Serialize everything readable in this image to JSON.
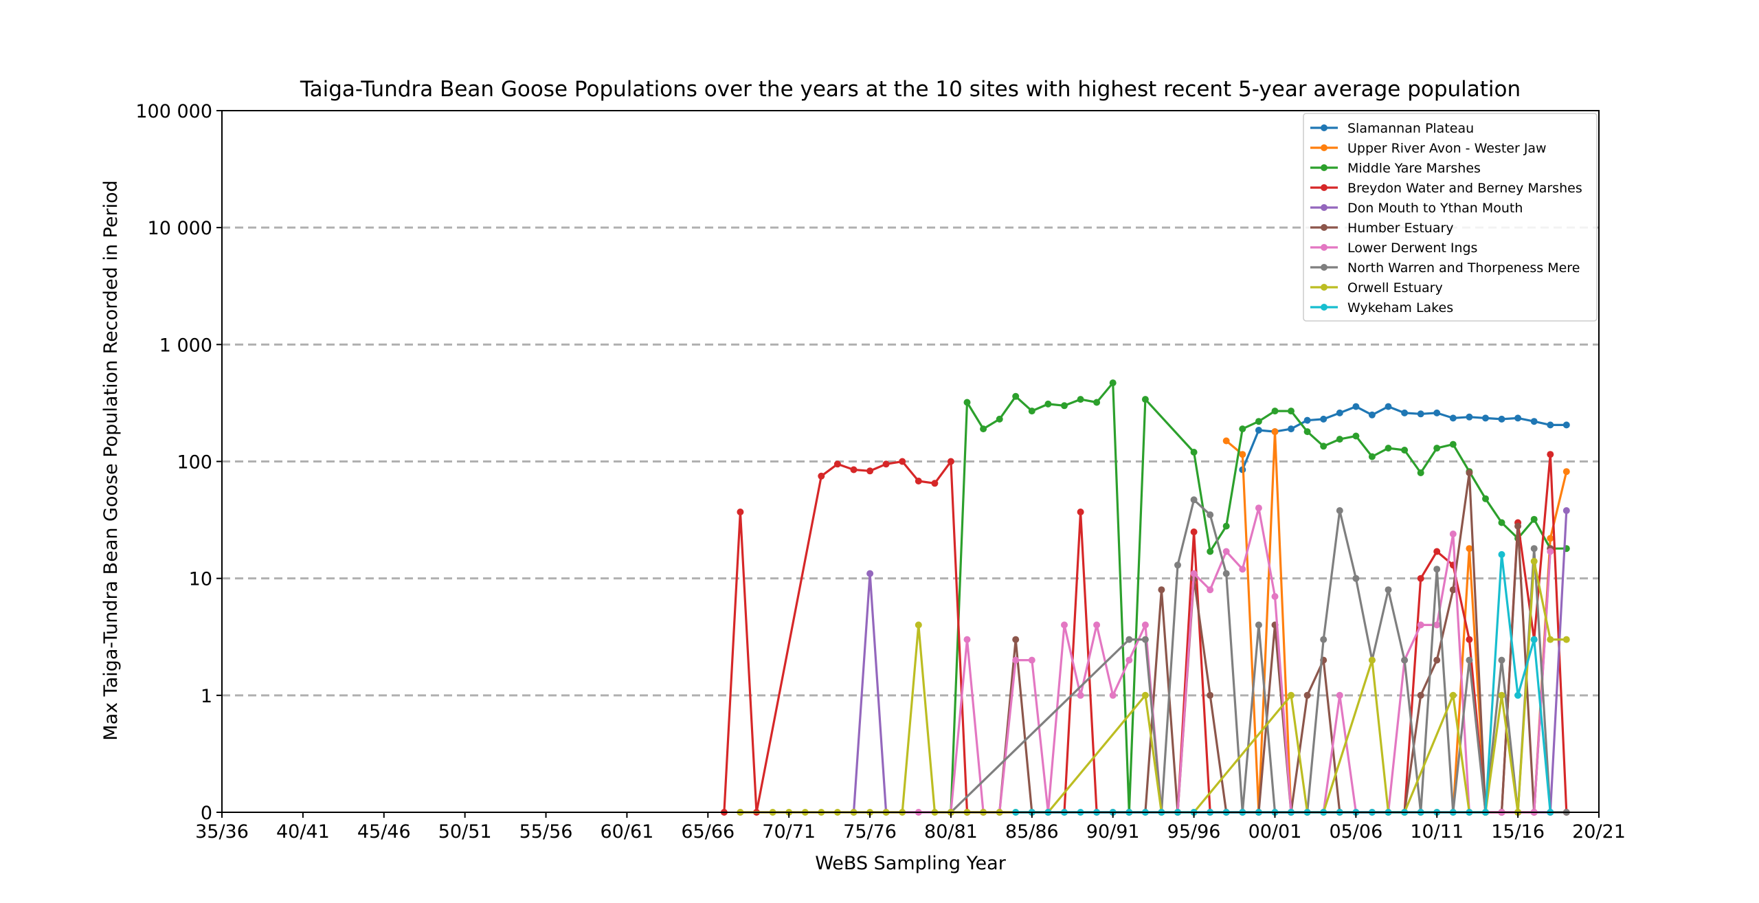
{
  "chart_data": {
    "type": "line",
    "title": "Taiga-Tundra Bean Goose Populations over the years at the 10 sites with highest recent 5-year average population",
    "xlabel": "WeBS Sampling Year",
    "ylabel": "Max Taiga-Tundra Bean Goose Population Recorded in Period",
    "x_axis": {
      "first_year": 1935,
      "last_year": 2020,
      "tick_labels": [
        "35/36",
        "40/41",
        "45/46",
        "50/51",
        "55/56",
        "60/61",
        "65/66",
        "70/71",
        "75/76",
        "80/81",
        "85/86",
        "90/91",
        "95/96",
        "00/01",
        "05/06",
        "10/11",
        "15/16",
        "20/21"
      ]
    },
    "y_axis": {
      "scale": "symlog",
      "linthresh": 1,
      "ylim": [
        0,
        100000
      ],
      "tick_values": [
        0,
        1,
        10,
        100,
        1000,
        10000,
        100000
      ],
      "tick_labels": [
        "0",
        "1",
        "10",
        "100",
        "1 000",
        "10 000",
        "100 000"
      ]
    },
    "grid": "horizontal dashed",
    "legend_position": "top-right",
    "series": [
      {
        "name": "Slamannan Plateau",
        "color": "#1f77b4",
        "x": [
          1998,
          1999,
          2000,
          2001,
          2002,
          2003,
          2004,
          2005,
          2006,
          2007,
          2008,
          2009,
          2010,
          2011,
          2012,
          2013,
          2014,
          2015,
          2016,
          2017,
          2018
        ],
        "y": [
          85,
          185,
          180,
          190,
          225,
          230,
          260,
          295,
          250,
          295,
          260,
          255,
          260,
          235,
          240,
          235,
          230,
          235,
          220,
          205,
          205
        ]
      },
      {
        "name": "Upper River Avon - Wester Jaw",
        "color": "#ff7f0e",
        "x": [
          1997,
          1998,
          1999,
          2000,
          2001,
          2002,
          2003,
          2004,
          2005,
          2006,
          2007,
          2008,
          2009,
          2010,
          2011,
          2012,
          2013,
          2014,
          2015,
          2016,
          2017,
          2018
        ],
        "y": [
          150,
          115,
          0,
          180,
          0,
          0,
          0,
          0,
          0,
          0,
          0,
          0,
          0,
          0,
          0,
          18,
          0,
          0,
          0,
          0,
          22,
          82
        ]
      },
      {
        "name": "Middle Yare Marshes",
        "color": "#2ca02c",
        "x": [
          1980,
          1981,
          1982,
          1983,
          1984,
          1985,
          1986,
          1987,
          1988,
          1989,
          1990,
          1991,
          1992,
          1995,
          1996,
          1997,
          1998,
          1999,
          2000,
          2001,
          2002,
          2003,
          2004,
          2005,
          2006,
          2007,
          2008,
          2009,
          2010,
          2011,
          2012,
          2013,
          2014,
          2015,
          2016,
          2017,
          2018
        ],
        "y": [
          0,
          320,
          190,
          230,
          360,
          270,
          310,
          300,
          340,
          320,
          470,
          0,
          340,
          120,
          17,
          28,
          190,
          220,
          270,
          270,
          180,
          135,
          155,
          165,
          110,
          130,
          125,
          80,
          130,
          140,
          82,
          48,
          30,
          22,
          32,
          18,
          18
        ]
      },
      {
        "name": "Breydon Water and Berney Marshes",
        "color": "#d62728",
        "x": [
          1966,
          1967,
          1968,
          1972,
          1973,
          1974,
          1975,
          1976,
          1977,
          1978,
          1979,
          1980,
          1981,
          1982,
          1986,
          1987,
          1988,
          1989,
          1990,
          1994,
          1995,
          1996,
          1997,
          2008,
          2009,
          2010,
          2011,
          2012,
          2013,
          2014,
          2015,
          2016,
          2017,
          2018
        ],
        "y": [
          0,
          37,
          0,
          75,
          95,
          85,
          83,
          95,
          100,
          68,
          65,
          100,
          0,
          0,
          0,
          0,
          37,
          0,
          0,
          0,
          25,
          0,
          0,
          0,
          10,
          17,
          13,
          3,
          0,
          0,
          30,
          3,
          115,
          0
        ]
      },
      {
        "name": "Don Mouth to Ythan Mouth",
        "color": "#9467bd",
        "x": [
          1974,
          1975,
          1976,
          2014,
          2015,
          2016,
          2017,
          2018
        ],
        "y": [
          0,
          11,
          0,
          0,
          0,
          0,
          0,
          38
        ]
      },
      {
        "name": "Humber Estuary",
        "color": "#8c564b",
        "x": [
          1983,
          1984,
          1985,
          1991,
          1992,
          1993,
          1994,
          1995,
          1996,
          1997,
          1998,
          1999,
          2000,
          2001,
          2002,
          2003,
          2004,
          2008,
          2009,
          2010,
          2011,
          2012,
          2013,
          2014,
          2015,
          2016,
          2017
        ],
        "y": [
          0,
          3,
          0,
          0,
          0,
          8,
          0,
          10,
          1,
          0,
          0,
          0,
          4,
          0,
          1,
          2,
          0,
          0,
          1,
          2,
          8,
          80,
          0,
          0,
          28,
          0,
          18
        ]
      },
      {
        "name": "Lower Derwent Ings",
        "color": "#e377c2",
        "x": [
          1967,
          1978,
          1980,
          1981,
          1982,
          1983,
          1984,
          1985,
          1986,
          1987,
          1988,
          1989,
          1990,
          1991,
          1992,
          1993,
          1994,
          1995,
          1996,
          1997,
          1998,
          1999,
          2000,
          2001,
          2002,
          2003,
          2004,
          2005,
          2006,
          2007,
          2008,
          2009,
          2010,
          2011,
          2012,
          2014,
          2015,
          2016,
          2017
        ],
        "y": [
          0,
          0,
          0,
          3,
          0,
          0,
          2,
          2,
          0,
          4,
          1,
          4,
          1,
          2,
          4,
          0,
          0,
          11,
          8,
          17,
          12,
          40,
          7,
          0,
          0,
          0,
          1,
          0,
          0,
          0,
          2,
          4,
          4,
          24,
          0,
          0,
          0,
          0,
          17
        ]
      },
      {
        "name": "North Warren and Thorpeness Mere",
        "color": "#7f7f7f",
        "x": [
          1980,
          1991,
          1992,
          1993,
          1994,
          1995,
          1996,
          1997,
          1998,
          1999,
          2000,
          2001,
          2002,
          2003,
          2004,
          2005,
          2006,
          2007,
          2008,
          2009,
          2010,
          2011,
          2012,
          2013,
          2014,
          2015,
          2016,
          2017,
          2018
        ],
        "y": [
          0,
          3,
          3,
          0,
          13,
          47,
          35,
          11,
          0,
          4,
          0,
          0,
          0,
          3,
          38,
          10,
          2,
          8,
          2,
          0,
          12,
          0,
          2,
          0,
          2,
          0,
          18,
          0,
          0
        ]
      },
      {
        "name": "Orwell Estuary",
        "color": "#bcbd22",
        "x": [
          1967,
          1969,
          1970,
          1971,
          1972,
          1973,
          1974,
          1975,
          1976,
          1977,
          1978,
          1979,
          1980,
          1981,
          1982,
          1983,
          1984,
          1985,
          1986,
          1992,
          1993,
          1994,
          1995,
          2001,
          2002,
          2003,
          2006,
          2007,
          2008,
          2011,
          2012,
          2013,
          2014,
          2015,
          2016,
          2017,
          2018
        ],
        "y": [
          0,
          0,
          0,
          0,
          0,
          0,
          0,
          0,
          0,
          0,
          4,
          0,
          0,
          0,
          0,
          0,
          0,
          0,
          0,
          1,
          0,
          0,
          0,
          1,
          0,
          0,
          2,
          0,
          0,
          1,
          0,
          0,
          1,
          0,
          14,
          3,
          3
        ]
      },
      {
        "name": "Wykeham Lakes",
        "color": "#17becf",
        "x": [
          1984,
          1985,
          1986,
          1987,
          1988,
          1989,
          1990,
          1991,
          1992,
          1993,
          1994,
          1995,
          1996,
          1997,
          1998,
          1999,
          2000,
          2001,
          2002,
          2003,
          2004,
          2005,
          2006,
          2007,
          2008,
          2009,
          2010,
          2011,
          2012,
          2013,
          2014,
          2015,
          2016,
          2017
        ],
        "y": [
          0,
          0,
          0,
          0,
          0,
          0,
          0,
          0,
          0,
          0,
          0,
          0,
          0,
          0,
          0,
          0,
          0,
          0,
          0,
          0,
          0,
          0,
          0,
          0,
          0,
          0,
          0,
          0,
          0,
          0,
          16,
          1,
          3,
          0
        ]
      }
    ]
  }
}
